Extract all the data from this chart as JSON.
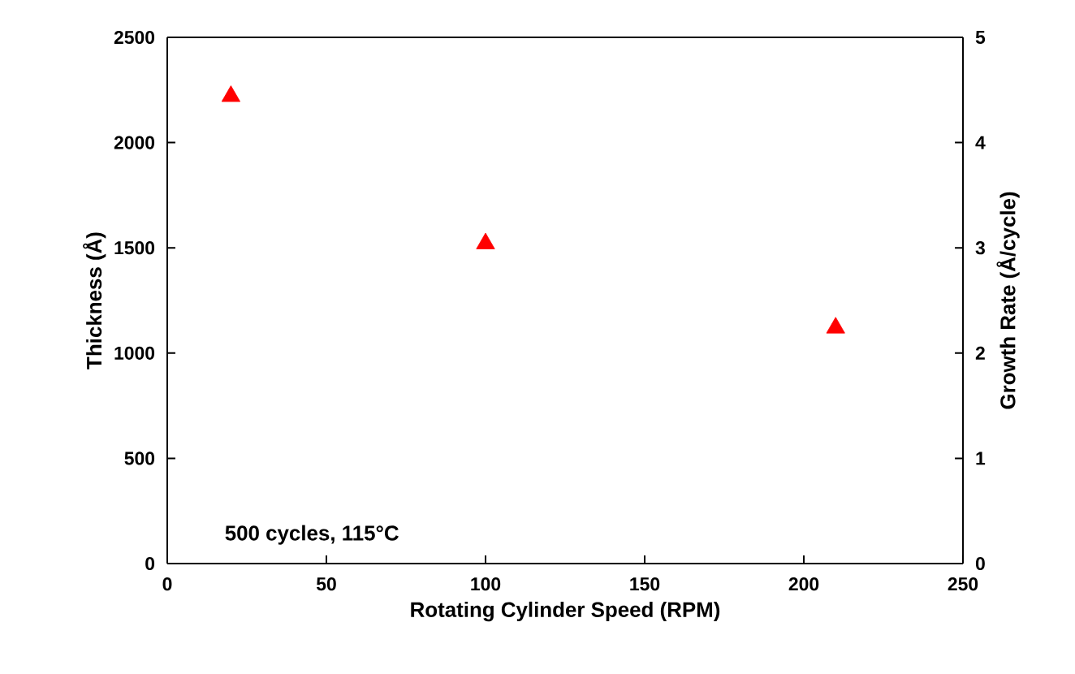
{
  "chart_data": {
    "type": "scatter",
    "xlabel": "Rotating Cylinder Speed (RPM)",
    "ylabel": "Thickness (Å)",
    "y2label": "Growth Rate (Å/cycle)",
    "x": [
      20,
      100,
      210
    ],
    "series": [
      {
        "color": "#ff0000",
        "values": [
          2220,
          1520,
          1120
        ]
      }
    ],
    "marker": "triangle",
    "xlim": [
      0,
      250
    ],
    "xticks": [
      0,
      50,
      100,
      150,
      200,
      250
    ],
    "ylim": [
      0,
      2500
    ],
    "yticks": [
      0,
      500,
      1000,
      1500,
      2000,
      2500
    ],
    "y2lim": [
      0,
      5
    ],
    "y2ticks": [
      0,
      1,
      2,
      3,
      4,
      5
    ],
    "annotations": [
      "500 cycles, 115°C"
    ]
  }
}
